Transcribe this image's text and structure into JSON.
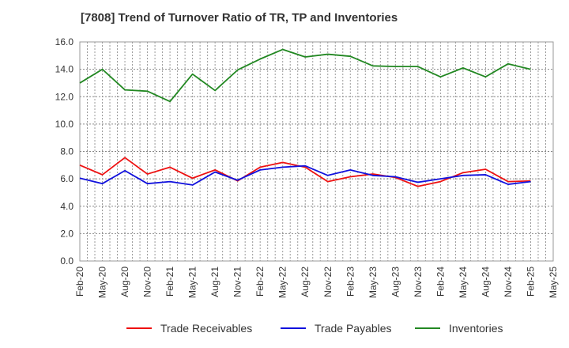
{
  "chart_data": {
    "type": "line",
    "title": "[7808]  Trend of Turnover Ratio of TR, TP and Inventories",
    "xlabel": "",
    "ylabel": "",
    "ylim": [
      0,
      16
    ],
    "yticks": [
      "0.0",
      "2.0",
      "4.0",
      "6.0",
      "8.0",
      "10.0",
      "12.0",
      "14.0",
      "16.0"
    ],
    "categories": [
      "Feb-20",
      "May-20",
      "Aug-20",
      "Nov-20",
      "Feb-21",
      "May-21",
      "Aug-21",
      "Nov-21",
      "Feb-22",
      "May-22",
      "Aug-22",
      "Nov-22",
      "Feb-23",
      "May-23",
      "Aug-23",
      "Nov-23",
      "Feb-24",
      "May-24",
      "Aug-24",
      "Nov-24",
      "Feb-25",
      "May-25"
    ],
    "grid": true,
    "legend_position": "bottom",
    "series": [
      {
        "name": "Trade Receivables",
        "color": "#ee1111",
        "values": [
          7.0,
          6.3,
          7.55,
          6.35,
          6.85,
          6.05,
          6.65,
          5.85,
          6.85,
          7.2,
          6.85,
          5.8,
          6.15,
          6.35,
          6.1,
          5.45,
          5.8,
          6.45,
          6.7,
          5.8,
          5.85,
          null
        ]
      },
      {
        "name": "Trade Payables",
        "color": "#1111dd",
        "values": [
          6.05,
          5.65,
          6.6,
          5.65,
          5.8,
          5.55,
          6.5,
          5.9,
          6.65,
          6.85,
          6.95,
          6.25,
          6.65,
          6.25,
          6.15,
          5.75,
          6.0,
          6.25,
          6.3,
          5.6,
          5.8,
          null
        ]
      },
      {
        "name": "Inventories",
        "color": "#228822",
        "values": [
          13.0,
          14.0,
          12.5,
          12.4,
          11.65,
          13.65,
          12.45,
          13.95,
          14.75,
          15.45,
          14.9,
          15.1,
          14.95,
          14.25,
          14.2,
          14.2,
          13.45,
          14.1,
          13.45,
          14.4,
          14.0,
          null
        ]
      }
    ]
  }
}
